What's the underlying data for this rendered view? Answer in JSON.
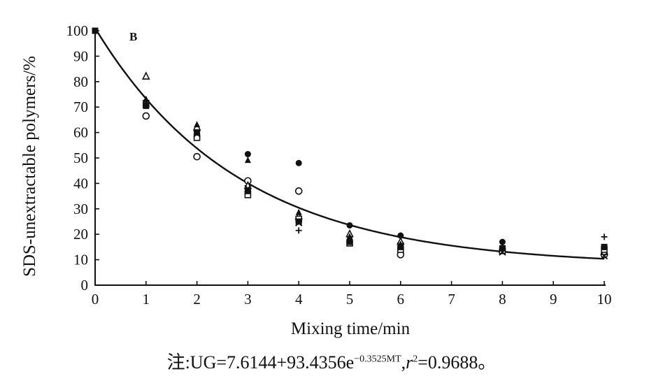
{
  "chart_data": {
    "type": "scatter",
    "panel_label": "B",
    "xlabel": "Mixing time/min",
    "ylabel": "SDS-unextractable polymers/%",
    "xlim": [
      0,
      10
    ],
    "ylim": [
      0,
      100
    ],
    "x_ticks": [
      0,
      1,
      2,
      3,
      4,
      5,
      6,
      7,
      8,
      9,
      10
    ],
    "y_ticks": [
      0,
      10,
      20,
      30,
      40,
      50,
      60,
      70,
      80,
      90,
      100
    ],
    "fit_curve": {
      "model": "exponential decay",
      "a": 7.6144,
      "b": 93.4356,
      "k": 0.3525
    },
    "series": [
      {
        "marker": "circle-open",
        "points": [
          [
            1,
            66.5
          ],
          [
            2,
            50.5
          ],
          [
            3,
            41
          ],
          [
            4,
            37
          ],
          [
            6,
            12
          ],
          [
            10,
            12
          ]
        ]
      },
      {
        "marker": "circle-filled",
        "points": [
          [
            1,
            72
          ],
          [
            2,
            59
          ],
          [
            3,
            51.5
          ],
          [
            4,
            48
          ],
          [
            5,
            23.5
          ],
          [
            6,
            19.5
          ],
          [
            8,
            17
          ],
          [
            10,
            15
          ]
        ]
      },
      {
        "marker": "triangle-open",
        "points": [
          [
            1,
            82
          ],
          [
            2,
            62
          ],
          [
            3,
            39
          ],
          [
            4,
            27
          ],
          [
            5,
            20
          ],
          [
            6,
            17
          ],
          [
            8,
            14
          ],
          [
            10,
            13
          ]
        ]
      },
      {
        "marker": "triangle-filled",
        "points": [
          [
            1,
            73
          ],
          [
            2,
            63
          ],
          [
            3,
            49
          ],
          [
            4,
            28.5
          ],
          [
            5,
            19
          ],
          [
            6,
            16
          ],
          [
            8,
            15
          ],
          [
            10,
            14
          ]
        ]
      },
      {
        "marker": "square-open",
        "points": [
          [
            1,
            71
          ],
          [
            2,
            58
          ],
          [
            3,
            35.5
          ],
          [
            4,
            26
          ],
          [
            5,
            16.5
          ],
          [
            6,
            14
          ],
          [
            8,
            13.5
          ],
          [
            10,
            14
          ]
        ]
      },
      {
        "marker": "square-filled",
        "points": [
          [
            1,
            70.5
          ],
          [
            2,
            60
          ],
          [
            3,
            37
          ],
          [
            4,
            25
          ],
          [
            5,
            17
          ],
          [
            6,
            15
          ],
          [
            8,
            14.5
          ],
          [
            10,
            15
          ]
        ]
      },
      {
        "marker": "x",
        "points": [
          [
            1,
            71.5
          ],
          [
            2,
            59.5
          ],
          [
            3,
            38
          ],
          [
            4,
            24.5
          ],
          [
            5,
            18
          ],
          [
            6,
            15.5
          ],
          [
            8,
            13
          ],
          [
            10,
            11.5
          ]
        ]
      },
      {
        "marker": "plus",
        "points": [
          [
            4,
            21.5
          ],
          [
            5,
            17.5
          ],
          [
            10,
            19
          ]
        ]
      }
    ]
  },
  "caption": {
    "prefix": "注:UG=7.6144+93.4356e",
    "exponent": "−0.3525MT",
    "r_symbol": "r",
    "r_exponent": "2",
    "suffix": "=0.9688。"
  }
}
